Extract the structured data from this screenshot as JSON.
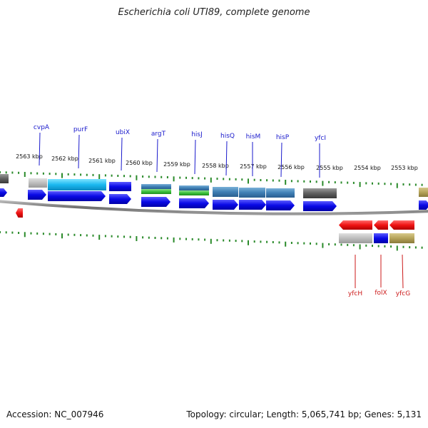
{
  "title": "Escherichia coli UTI89, complete genome",
  "footer": {
    "accession": "Accession: NC_007946",
    "summary": "Topology: circular; Length: 5,065,741 bp; Genes: 5,131"
  },
  "scale_labels": [
    "2563 kbp",
    "2562 kbp",
    "2561 kbp",
    "2560 kbp",
    "2559 kbp",
    "2558 kbp",
    "2557 kbp",
    "2556 kbp",
    "2555 kbp",
    "2554 kbp",
    "2553 kbp"
  ],
  "top_genes": [
    "cvpA",
    "purF",
    "ubiX",
    "argT",
    "hisJ",
    "hisQ",
    "hisM",
    "hisP",
    "yfcI"
  ],
  "bottom_genes": [
    "yfcH",
    "folX",
    "yfcG"
  ],
  "colors": {
    "forward_label": "#1a1acc",
    "reverse_label": "#cc1a1a",
    "tick": "#2a8a2a",
    "backbone": "#777777",
    "arrow_blue": "#0a0ae6",
    "arrow_red": "#f01414"
  }
}
